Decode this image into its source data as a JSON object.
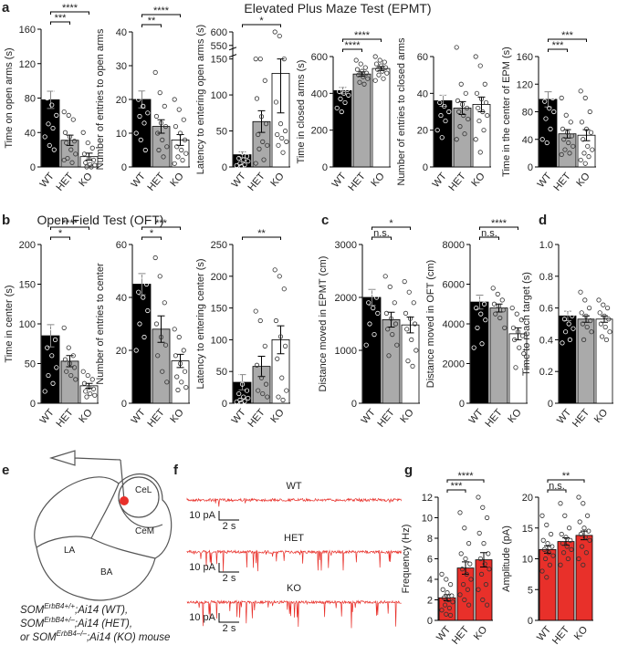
{
  "panels": [
    "a",
    "b",
    "c",
    "d",
    "e",
    "f",
    "g"
  ],
  "titles": {
    "epmt": "Elevated Plus Maze Test (EPMT)",
    "oft": "Open Field Test (OFT)"
  },
  "diagram": {
    "regions": [
      "LA",
      "BA",
      "CeL",
      "CeM"
    ]
  },
  "caption": [
    {
      "pre": "SOM",
      "sup": "ErbB4+/+",
      "post": ";Ai14 (WT),"
    },
    {
      "pre": "SOM",
      "sup": "ErbB4+/–",
      "post": ";Ai14 (HET),"
    },
    {
      "pre": "or SOM",
      "sup": "ErbB4–/–",
      "post": ";Ai14 (KO) mouse"
    }
  ],
  "traces": {
    "labels": [
      "WT",
      "HET",
      "KO"
    ],
    "scale_current": "10 pA",
    "scale_time": "2 s"
  },
  "chart_data": [
    {
      "type": "bar",
      "ylabel": "Time on open arms (s)",
      "categories": [
        "WT",
        "HET",
        "KO"
      ],
      "values": [
        78,
        31,
        12
      ],
      "errors": [
        10,
        6,
        4
      ],
      "colors": [
        "#000000",
        "#aaaaaa",
        "#ffffff"
      ],
      "points": [
        [
          150,
          136,
          120,
          105,
          95,
          88,
          80,
          72,
          60,
          50,
          45,
          35,
          25,
          20
        ],
        [
          64,
          60,
          55,
          40,
          35,
          30,
          28,
          20,
          15,
          10,
          5,
          8
        ],
        [
          40,
          28,
          22,
          15,
          10,
          8,
          5,
          3,
          2,
          0,
          0
        ]
      ],
      "ylim": [
        0,
        160
      ],
      "yticks": [
        0,
        40,
        80,
        120,
        160
      ],
      "significance": [
        {
          "between": [
            "WT",
            "HET"
          ],
          "label": "***"
        },
        {
          "between": [
            "WT",
            "KO"
          ],
          "label": "****"
        }
      ]
    },
    {
      "type": "bar",
      "ylabel": "Number of entries to open arms",
      "categories": [
        "WT",
        "HET",
        "KO"
      ],
      "values": [
        20,
        12,
        8
      ],
      "errors": [
        2.5,
        2,
        1.6
      ],
      "colors": [
        "#000000",
        "#aaaaaa",
        "#ffffff"
      ],
      "points": [
        [
          40,
          35,
          30,
          27,
          24,
          22,
          20,
          18,
          16,
          15,
          13,
          10,
          8,
          5
        ],
        [
          28,
          22,
          18,
          15,
          13,
          12,
          10,
          8,
          6,
          5,
          3
        ],
        [
          20,
          17,
          14,
          12,
          10,
          8,
          6,
          5,
          4,
          3,
          2,
          1
        ]
      ],
      "ylim": [
        0,
        40
      ],
      "yticks": [
        0,
        10,
        20,
        30,
        40
      ],
      "significance": [
        {
          "between": [
            "WT",
            "HET"
          ],
          "label": "**"
        },
        {
          "between": [
            "WT",
            "KO"
          ],
          "label": "****"
        }
      ]
    },
    {
      "type": "bar",
      "ylabel": "Latency to entering open arms (s)",
      "categories": [
        "WT",
        "HET",
        "KO"
      ],
      "values": [
        17,
        63,
        130
      ],
      "errors": [
        4,
        15,
        55
      ],
      "colors": [
        "#000000",
        "#aaaaaa",
        "#ffffff"
      ],
      "points": [
        [
          48,
          38,
          30,
          25,
          20,
          15,
          12,
          10,
          8,
          5,
          3,
          2,
          1
        ],
        [
          165,
          150,
          120,
          95,
          70,
          60,
          45,
          35,
          30,
          25,
          10,
          5
        ],
        [
          600,
          585,
          150,
          90,
          60,
          50,
          45,
          40,
          35,
          30,
          20
        ]
      ],
      "ylim": [
        0,
        600
      ],
      "ybreak": [
        150,
        550
      ],
      "yticks": [
        0,
        50,
        100,
        150,
        550,
        600
      ],
      "significance": [
        {
          "between": [
            "WT",
            "KO"
          ],
          "label": "*"
        }
      ]
    },
    {
      "type": "bar",
      "ylabel": "Time in closed arms (s)",
      "categories": [
        "WT",
        "HET",
        "KO"
      ],
      "values": [
        415,
        505,
        535
      ],
      "errors": [
        17,
        12,
        11
      ],
      "colors": [
        "#000000",
        "#aaaaaa",
        "#ffffff"
      ],
      "points": [
        [
          520,
          490,
          470,
          450,
          430,
          420,
          410,
          400,
          390,
          370,
          350,
          320,
          300
        ],
        [
          580,
          560,
          540,
          530,
          520,
          510,
          500,
          490,
          480,
          460,
          450
        ],
        [
          600,
          580,
          570,
          560,
          550,
          540,
          530,
          520,
          510,
          500,
          480,
          470
        ]
      ],
      "ylim": [
        0,
        600
      ],
      "yticks": [
        0,
        200,
        400,
        600
      ],
      "significance": [
        {
          "between": [
            "WT",
            "HET"
          ],
          "label": "****"
        },
        {
          "between": [
            "WT",
            "KO"
          ],
          "label": "****"
        }
      ]
    },
    {
      "type": "bar",
      "ylabel": "Number of entries to closed arms",
      "categories": [
        "WT",
        "HET",
        "KO"
      ],
      "values": [
        36,
        32,
        34
      ],
      "errors": [
        3,
        3.5,
        4
      ],
      "colors": [
        "#000000",
        "#aaaaaa",
        "#ffffff"
      ],
      "points": [
        [
          50,
          48,
          45,
          42,
          40,
          38,
          35,
          33,
          30,
          28,
          25,
          20,
          16
        ],
        [
          65,
          45,
          40,
          36,
          34,
          32,
          30,
          28,
          26,
          22,
          18,
          15
        ],
        [
          60,
          55,
          45,
          40,
          37,
          35,
          32,
          30,
          28,
          25,
          20,
          15,
          8
        ]
      ],
      "ylim": [
        0,
        60
      ],
      "yticks": [
        0,
        20,
        40,
        60
      ],
      "significance": []
    },
    {
      "type": "bar",
      "ylabel": "Time in the center of EPM (s)",
      "categories": [
        "WT",
        "HET",
        "KO"
      ],
      "values": [
        98,
        48,
        46
      ],
      "errors": [
        11,
        6,
        8
      ],
      "colors": [
        "#000000",
        "#aaaaaa",
        "#ffffff"
      ],
      "points": [
        [
          150,
          145,
          140,
          130,
          120,
          100,
          95,
          85,
          80,
          70,
          55,
          40,
          35
        ],
        [
          100,
          75,
          65,
          55,
          50,
          45,
          40,
          35,
          30,
          25,
          20,
          18
        ],
        [
          110,
          100,
          80,
          65,
          55,
          50,
          40,
          30,
          25,
          20,
          15,
          10,
          5
        ]
      ],
      "ylim": [
        0,
        160
      ],
      "yticks": [
        0,
        40,
        80,
        120,
        160
      ],
      "significance": [
        {
          "between": [
            "WT",
            "HET"
          ],
          "label": "***"
        },
        {
          "between": [
            "WT",
            "KO"
          ],
          "label": "***"
        }
      ]
    },
    {
      "type": "bar",
      "ylabel": "Time in center (s)",
      "categories": [
        "WT",
        "HET",
        "KO"
      ],
      "values": [
        85,
        53,
        22
      ],
      "errors": [
        14,
        7,
        3
      ],
      "colors": [
        "#000000",
        "#aaaaaa",
        "#ffffff"
      ],
      "points": [
        [
          195,
          150,
          130,
          110,
          95,
          80,
          70,
          60,
          45,
          35,
          25,
          15
        ],
        [
          95,
          70,
          60,
          55,
          50,
          45,
          40,
          35,
          30
        ],
        [
          40,
          35,
          30,
          25,
          20,
          18,
          15,
          12,
          10,
          8
        ]
      ],
      "ylim": [
        0,
        200
      ],
      "yticks": [
        0,
        50,
        100,
        150,
        200
      ],
      "significance": [
        {
          "between": [
            "WT",
            "HET"
          ],
          "label": "*"
        },
        {
          "between": [
            "WT",
            "KO"
          ],
          "label": "****"
        }
      ]
    },
    {
      "type": "bar",
      "ylabel": "Number of entries to center",
      "categories": [
        "WT",
        "HET",
        "KO"
      ],
      "values": [
        45,
        28,
        16
      ],
      "errors": [
        4,
        5,
        2.5
      ],
      "colors": [
        "#000000",
        "#aaaaaa",
        "#ffffff"
      ],
      "points": [
        [
          65,
          60,
          58,
          52,
          48,
          45,
          42,
          40,
          35,
          30,
          25,
          20
        ],
        [
          55,
          48,
          38,
          30,
          25,
          22,
          18,
          12,
          8
        ],
        [
          28,
          25,
          20,
          18,
          15,
          12,
          10,
          8,
          6,
          5
        ]
      ],
      "ylim": [
        0,
        60
      ],
      "yticks": [
        0,
        20,
        40,
        60
      ],
      "significance": [
        {
          "between": [
            "WT",
            "HET"
          ],
          "label": "*"
        },
        {
          "between": [
            "WT",
            "KO"
          ],
          "label": "***"
        }
      ]
    },
    {
      "type": "bar",
      "ylabel": "Latency to entering center (s)",
      "categories": [
        "WT",
        "HET",
        "KO"
      ],
      "values": [
        33,
        58,
        100
      ],
      "errors": [
        12,
        16,
        22
      ],
      "colors": [
        "#000000",
        "#aaaaaa",
        "#ffffff"
      ],
      "points": [
        [
          165,
          70,
          55,
          45,
          30,
          20,
          15,
          10,
          8,
          5,
          3,
          2,
          1
        ],
        [
          145,
          130,
          90,
          60,
          40,
          30,
          20,
          15,
          10
        ],
        [
          210,
          200,
          180,
          130,
          105,
          90,
          70,
          40,
          20,
          10,
          5
        ]
      ],
      "ylim": [
        0,
        250
      ],
      "yticks": [
        0,
        50,
        100,
        150,
        200,
        250
      ],
      "significance": [
        {
          "between": [
            "WT",
            "KO"
          ],
          "label": "**"
        }
      ]
    },
    {
      "type": "bar",
      "ylabel": "Distance moved in EPMT (cm)",
      "categories": [
        "WT",
        "HET",
        "KO"
      ],
      "values": [
        2000,
        1580,
        1480
      ],
      "errors": [
        150,
        140,
        150
      ],
      "colors": [
        "#000000",
        "#aaaaaa",
        "#ffffff"
      ],
      "points": [
        [
          2800,
          2700,
          2500,
          2300,
          2100,
          2000,
          1900,
          1800,
          1700,
          1500,
          1300,
          1100
        ],
        [
          2400,
          2200,
          1900,
          1700,
          1600,
          1500,
          1400,
          1300,
          1100,
          900
        ],
        [
          2300,
          2100,
          1900,
          1700,
          1600,
          1500,
          1400,
          1200,
          1000,
          800,
          700
        ]
      ],
      "ylim": [
        0,
        3000
      ],
      "yticks": [
        0,
        1000,
        2000,
        3000
      ],
      "significance": [
        {
          "between": [
            "WT",
            "HET"
          ],
          "label": "n.s."
        },
        {
          "between": [
            "WT",
            "KO"
          ],
          "label": "*"
        }
      ]
    },
    {
      "type": "bar",
      "ylabel": "Distance moved in OFT (cm)",
      "categories": [
        "WT",
        "HET",
        "KO"
      ],
      "values": [
        5100,
        4800,
        3500
      ],
      "errors": [
        350,
        200,
        300
      ],
      "colors": [
        "#000000",
        "#aaaaaa",
        "#ffffff"
      ],
      "points": [
        [
          6800,
          6500,
          6000,
          5600,
          5300,
          5000,
          4800,
          4500,
          4200,
          3800,
          3000,
          2800
        ],
        [
          5800,
          5500,
          5200,
          5000,
          4900,
          4700,
          4500,
          4300,
          3800
        ],
        [
          4800,
          4500,
          4200,
          3800,
          3600,
          3400,
          3200,
          2800,
          2500,
          1800
        ]
      ],
      "ylim": [
        0,
        8000
      ],
      "yticks": [
        0,
        2000,
        4000,
        6000,
        8000
      ],
      "significance": [
        {
          "between": [
            "WT",
            "HET"
          ],
          "label": "n.s."
        },
        {
          "between": [
            "WT",
            "KO"
          ],
          "label": "****"
        }
      ]
    },
    {
      "type": "bar",
      "ylabel": "Time to reach target (s)",
      "categories": [
        "WT",
        "HET",
        "KO"
      ],
      "values": [
        0.55,
        0.53,
        0.53
      ],
      "errors": [
        0.03,
        0.02,
        0.02
      ],
      "colors": [
        "#000000",
        "#aaaaaa",
        "#ffffff"
      ],
      "points": [
        [
          0.95,
          0.7,
          0.65,
          0.6,
          0.57,
          0.55,
          0.53,
          0.5,
          0.47,
          0.45,
          0.4,
          0.38
        ],
        [
          0.7,
          0.65,
          0.6,
          0.57,
          0.55,
          0.52,
          0.5,
          0.48,
          0.45,
          0.4
        ],
        [
          0.65,
          0.62,
          0.6,
          0.57,
          0.55,
          0.53,
          0.5,
          0.48,
          0.45,
          0.42,
          0.4
        ]
      ],
      "ylim": [
        0,
        1
      ],
      "yticks": [
        0,
        0.2,
        0.4,
        0.6,
        0.8,
        {
          "value": 1,
          "label": "1.0"
        }
      ],
      "significance": []
    },
    {
      "type": "bar",
      "ylabel": "Frequency (Hz)",
      "categories": [
        "WT",
        "HET",
        "KO"
      ],
      "values": [
        2.2,
        5.1,
        5.9
      ],
      "errors": [
        0.3,
        0.6,
        0.7
      ],
      "colors": [
        "#e8302a",
        "#e8302a",
        "#e8302a"
      ],
      "points": [
        [
          4.5,
          4.0,
          3.5,
          3.0,
          2.7,
          2.4,
          2.2,
          2.0,
          1.8,
          1.5,
          1.2,
          1.0,
          0.6,
          0.5
        ],
        [
          10.5,
          9,
          7.5,
          6.5,
          6,
          5.5,
          5,
          4.5,
          4,
          3.5,
          3,
          2.5,
          2,
          1.5
        ],
        [
          12,
          11,
          10,
          8.5,
          7.5,
          6.5,
          6,
          5.5,
          5,
          4.5,
          3.5,
          3,
          2,
          1.5
        ]
      ],
      "ylim": [
        0,
        12
      ],
      "yticks": [
        0,
        2,
        4,
        6,
        8,
        10,
        12
      ],
      "significance": [
        {
          "between": [
            "WT",
            "HET"
          ],
          "label": "***"
        },
        {
          "between": [
            "WT",
            "KO"
          ],
          "label": "****"
        }
      ]
    },
    {
      "type": "bar",
      "ylabel": "Amplitude (pA)",
      "categories": [
        "WT",
        "HET",
        "KO"
      ],
      "values": [
        11.5,
        12.8,
        13.8
      ],
      "errors": [
        0.6,
        0.6,
        0.7
      ],
      "colors": [
        "#e8302a",
        "#e8302a",
        "#e8302a"
      ],
      "points": [
        [
          17,
          15.5,
          14,
          13,
          12.5,
          12,
          11.5,
          11,
          10.5,
          10,
          9,
          8,
          7
        ],
        [
          19,
          17,
          15,
          14,
          13.5,
          13,
          12.5,
          12,
          11.5,
          11,
          10,
          9
        ],
        [
          20,
          19,
          17,
          16,
          15,
          14.5,
          14,
          13.5,
          13,
          12,
          11,
          10,
          9
        ]
      ],
      "ylim": [
        0,
        20
      ],
      "yticks": [
        0,
        5,
        10,
        15,
        20
      ],
      "significance": [
        {
          "between": [
            "WT",
            "HET"
          ],
          "label": "n.s."
        },
        {
          "between": [
            "WT",
            "KO"
          ],
          "label": "**"
        }
      ]
    }
  ]
}
